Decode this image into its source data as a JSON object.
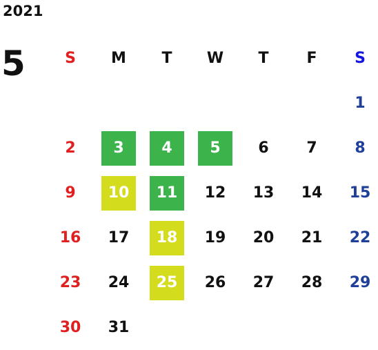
{
  "year": "2021",
  "month": "5",
  "weekdays": [
    "S",
    "M",
    "T",
    "W",
    "T",
    "F",
    "S"
  ],
  "colors": {
    "sunday": "#e02020",
    "saturday": "#1f3f99",
    "saturday_header": "#1515e0",
    "green_highlight": "#3cb44b",
    "yellow_highlight": "#d4dc1e"
  },
  "weeks": [
    [
      "",
      "",
      "",
      "",
      "",
      "",
      "1"
    ],
    [
      "2",
      "3",
      "4",
      "5",
      "6",
      "7",
      "8"
    ],
    [
      "9",
      "10",
      "11",
      "12",
      "13",
      "14",
      "15"
    ],
    [
      "16",
      "17",
      "18",
      "19",
      "20",
      "21",
      "22"
    ],
    [
      "23",
      "24",
      "25",
      "26",
      "27",
      "28",
      "29"
    ],
    [
      "30",
      "31",
      "",
      "",
      "",
      "",
      ""
    ]
  ],
  "highlights": {
    "3": "green",
    "4": "green",
    "5": "green",
    "10": "yellow",
    "11": "green",
    "18": "yellow",
    "25": "yellow"
  }
}
